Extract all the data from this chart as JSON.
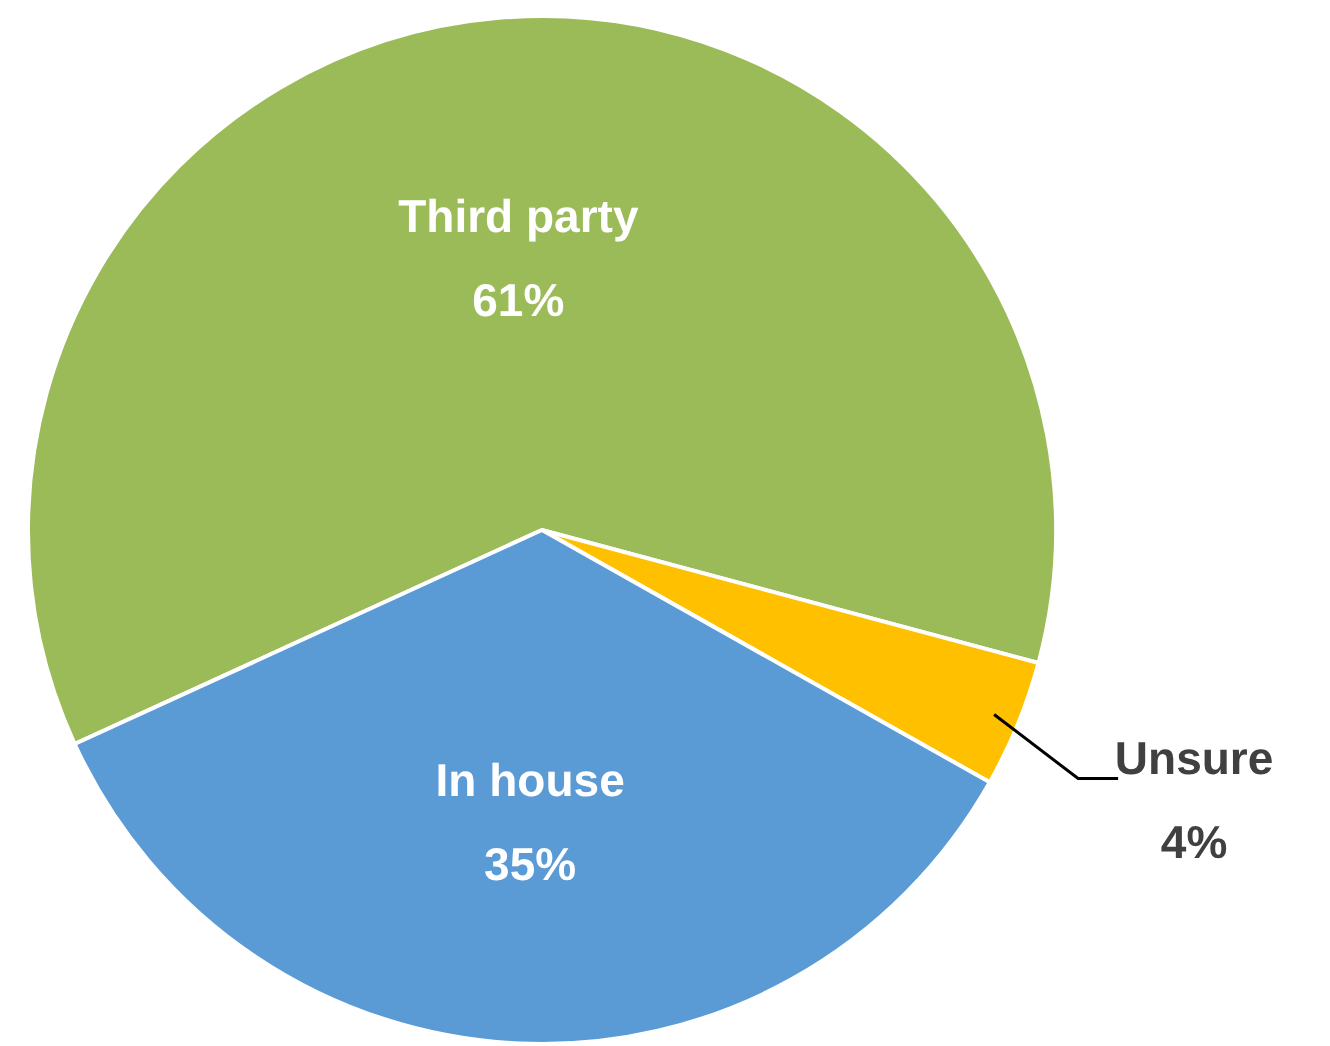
{
  "chart_data": {
    "type": "pie",
    "categories": [
      "Third party",
      "Unsure",
      "In house"
    ],
    "values": [
      61,
      4,
      35
    ],
    "colors": [
      "#9bbb59",
      "#ffc000",
      "#5b9bd5"
    ],
    "value_labels": [
      "61%",
      "4%",
      "35%"
    ]
  }
}
